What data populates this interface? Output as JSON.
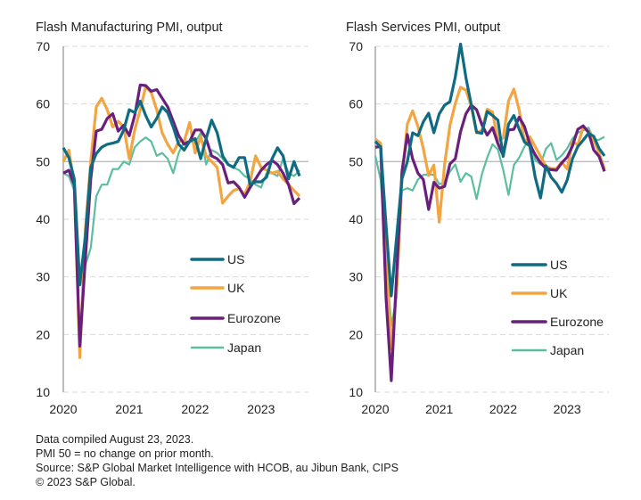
{
  "chart_data": [
    {
      "type": "line",
      "title": "Flash Manufacturing PMI, output",
      "x_start": "2020-01",
      "x_end": "2023-08",
      "frequency": "monthly",
      "xticks": [
        "2020",
        "2021",
        "2022",
        "2023"
      ],
      "yticks": [
        "10",
        "20",
        "30",
        "40",
        "50",
        "60",
        "70"
      ],
      "ylim": [
        10,
        70
      ],
      "grid": "horizontal dashed, solid at 50",
      "legend": "bottom-right",
      "series": [
        {
          "name": "US",
          "color": "#0f6b82",
          "values": [
            52.4,
            50.7,
            47,
            28.6,
            37,
            49,
            51.4,
            52.5,
            53,
            53.2,
            53.5,
            55.5,
            59,
            58.5,
            60.5,
            58,
            56,
            57.5,
            59.5,
            58.5,
            56,
            53,
            52,
            53.5,
            54,
            50.5,
            54,
            57.2,
            55,
            51,
            49.5,
            49,
            50.7,
            50.7,
            46,
            46.5,
            46.5,
            47.3,
            50.5,
            52.4,
            51,
            47,
            50,
            47.5
          ]
        },
        {
          "name": "UK",
          "color": "#f2a541",
          "values": [
            50,
            52,
            46,
            16,
            38,
            50,
            59.5,
            61,
            59,
            56,
            57,
            56,
            50.5,
            55.5,
            59,
            63,
            62,
            59,
            55,
            53,
            51.5,
            53.5,
            53.5,
            56.8,
            51.5,
            54.3,
            51,
            50,
            49,
            42.8,
            44,
            45,
            45.3,
            44.3,
            46.5,
            51,
            49,
            48.5,
            48,
            48.3,
            47,
            46,
            45,
            44
          ]
        },
        {
          "name": "Eurozone",
          "color": "#6b1f7c",
          "values": [
            48,
            48.5,
            46,
            18,
            33,
            47,
            55.3,
            55.6,
            57.5,
            58.3,
            55.3,
            56.3,
            54.5,
            58,
            63.3,
            63.2,
            62.2,
            62.5,
            61,
            59.5,
            57,
            54.5,
            53,
            53.5,
            55.5,
            55.5,
            54,
            51,
            50.5,
            49.5,
            46.3,
            46.5,
            45.5,
            43.8,
            45.5,
            47,
            48.5,
            49.5,
            50.2,
            49.5,
            48,
            46,
            42.7,
            43.7
          ]
        },
        {
          "name": "Japan",
          "color": "#5bbf9f",
          "values": [
            48,
            47.5,
            45,
            30,
            32,
            35,
            44,
            46,
            46,
            48.7,
            48.7,
            50,
            49.5,
            52.5,
            53.5,
            54.2,
            53.5,
            51,
            51.5,
            50.5,
            48,
            51.5,
            53.5,
            53.5,
            53.3,
            55,
            49.5,
            52,
            51.5,
            50.5,
            49.5,
            49,
            48.5,
            47.5,
            47,
            46,
            45.5,
            48,
            48,
            47.5,
            50.5,
            48,
            47.5,
            48.5
          ]
        }
      ]
    },
    {
      "type": "line",
      "title": "Flash Services PMI, output",
      "x_start": "2020-01",
      "x_end": "2023-08",
      "frequency": "monthly",
      "xticks": [
        "2020",
        "2021",
        "2022",
        "2023"
      ],
      "yticks": [
        "10",
        "20",
        "30",
        "40",
        "50",
        "60",
        "70"
      ],
      "ylim": [
        10,
        70
      ],
      "grid": "horizontal dashed, solid at 50",
      "legend": "bottom-right",
      "series": [
        {
          "name": "US",
          "color": "#0f6b82",
          "values": [
            53.5,
            52.5,
            39,
            26.7,
            37,
            47,
            50,
            55,
            54.5,
            56.9,
            58.4,
            55,
            58.3,
            59.8,
            60.4,
            64.7,
            70.4,
            64.6,
            59.9,
            55.1,
            54.9,
            58.7,
            58,
            57.2,
            50.9,
            56.5,
            58,
            55.6,
            53.4,
            52.7,
            47.3,
            43.7,
            49.3,
            47.3,
            46.2,
            44.7,
            46.8,
            50.5,
            52.6,
            53.7,
            54.9,
            54.4,
            52.3,
            51
          ]
        },
        {
          "name": "UK",
          "color": "#f2a541",
          "values": [
            53.9,
            53.2,
            34.5,
            17.5,
            27.8,
            47.1,
            56.5,
            58.8,
            56.1,
            52.3,
            47.6,
            49.4,
            39.5,
            49.5,
            56.3,
            60.1,
            62.9,
            62.4,
            59.6,
            55,
            55.4,
            59.1,
            58.6,
            53.6,
            54.1,
            60.5,
            62.6,
            58.9,
            53.4,
            54.3,
            52.6,
            50.9,
            49.2,
            48.8,
            48.8,
            49.9,
            48.7,
            53.5,
            52.9,
            55.9,
            55.2,
            53.7,
            51.5,
            48.7
          ]
        },
        {
          "name": "Eurozone",
          "color": "#6b1f7c",
          "values": [
            52.5,
            52.6,
            26.4,
            12,
            30.5,
            48.3,
            54.7,
            50.5,
            48,
            46.9,
            41.7,
            46.4,
            45.4,
            45.7,
            49.6,
            50.5,
            55.2,
            58.3,
            59.8,
            59,
            56.4,
            54.6,
            55.9,
            53.1,
            51.1,
            55.5,
            55.6,
            57.7,
            56.1,
            53,
            51.2,
            49.8,
            48.8,
            48.6,
            48.5,
            49.8,
            50.8,
            52.7,
            55.6,
            56.2,
            55.1,
            52,
            50.9,
            48.3
          ]
        },
        {
          "name": "Japan",
          "color": "#5bbf9f",
          "values": [
            51,
            46.8,
            33.8,
            21.5,
            26.5,
            45,
            45.4,
            45,
            46.9,
            47.7,
            47.8,
            47.7,
            46.1,
            46.3,
            48.3,
            49.5,
            46.5,
            48,
            47.4,
            43.5,
            47.8,
            50.7,
            53,
            52.1,
            48.6,
            44.2,
            49.4,
            50.7,
            52.6,
            54,
            50.3,
            49.5,
            52.2,
            53.2,
            50.3,
            51.1,
            52.3,
            54,
            55,
            55.4,
            55.9,
            53.8,
            53.8,
            54.3
          ]
        }
      ]
    }
  ],
  "notes": [
    "Data compiled August 23, 2023.",
    "PMI 50 = no change on prior month.",
    "Source: S&P Global Market Intelligence with HCOB, au Jibun Bank, CIPS",
    "© 2023 S&P Global."
  ]
}
